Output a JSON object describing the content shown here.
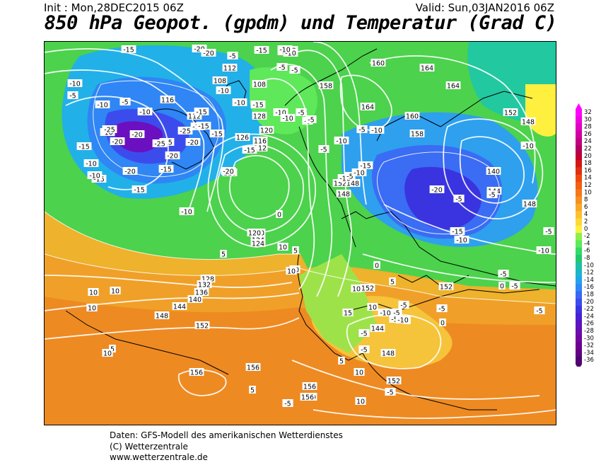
{
  "header": {
    "init": "Init : Mon,28DEC2015 06Z",
    "valid": "Valid: Sun,03JAN2016 06Z",
    "title": "850 hPa Geopot. (gpdm) und Temperatur (Grad C)"
  },
  "legend": {
    "labels": [
      "32",
      "30",
      "28",
      "26",
      "24",
      "22",
      "20",
      "18",
      "16",
      "14",
      "12",
      "10",
      "8",
      "6",
      "4",
      "2",
      "0",
      "-2",
      "-4",
      "-6",
      "-8",
      "-10",
      "-12",
      "-14",
      "-16",
      "-18",
      "-20",
      "-22",
      "-24",
      "-26",
      "-28",
      "-30",
      "-32",
      "-34",
      "-36"
    ],
    "colors": [
      "#ff00ff",
      "#f000e0",
      "#e000c0",
      "#d000a0",
      "#c00080",
      "#b00060",
      "#c00030",
      "#d01818",
      "#e03010",
      "#ee4a10",
      "#f26010",
      "#f57818",
      "#f89020",
      "#faa828",
      "#fcc030",
      "#fdd838",
      "#fff040",
      "#8cf04c",
      "#5ee85a",
      "#30dc66",
      "#22c870",
      "#1ec0a0",
      "#1cb4cc",
      "#22a4ec",
      "#3088f8",
      "#3a68f4",
      "#3c4cec",
      "#3a34e0",
      "#4a20d0",
      "#5c14c0",
      "#6a0cb0",
      "#7006a0",
      "#6c0090",
      "#600080",
      "#500070"
    ]
  },
  "map": {
    "temperature_labels": [
      "-15",
      "-20",
      "-20",
      "-15",
      "-15",
      "-10",
      "-5",
      "-10",
      "-10",
      "-5",
      "-15",
      "-10",
      "-10",
      "-5",
      "-10",
      "-5",
      "-5",
      "-10",
      "-10",
      "-10",
      "-20",
      "-15",
      "-15",
      "-10",
      "-10",
      "-15",
      "-10",
      "-20",
      "-15",
      "-20",
      "-15",
      "-25",
      "-20",
      "-25",
      "-25",
      "-20",
      "-15",
      "-15",
      "-15",
      "-15",
      "-20",
      "-15",
      "-10",
      "-10",
      "-5",
      "-5",
      "-5",
      "-5",
      "-10",
      "-15",
      "-10",
      "-5",
      "-5",
      "-10",
      "-10",
      "-20",
      "-15",
      "-10",
      "-5",
      "-5",
      "-10",
      "-5",
      "-10",
      "-10",
      "-5",
      "-5",
      "-5",
      "-5",
      "0",
      "0",
      "5",
      "0",
      "5",
      "10",
      "10",
      "10",
      "10",
      "10",
      "10",
      "5",
      "10",
      "5",
      "-5",
      "5",
      "10",
      "15",
      "10",
      "5",
      "0",
      "-5",
      "10",
      "-5",
      "10",
      "-10",
      "-5",
      "-5",
      "-5",
      "-5",
      "-5",
      "-5",
      "0",
      "-10",
      "0"
    ],
    "height_labels": [
      "112",
      "108",
      "116",
      "112",
      "116",
      "120",
      "124",
      "128",
      "120",
      "116",
      "112",
      "108",
      "120",
      "124",
      "126",
      "160",
      "164",
      "164",
      "158",
      "164",
      "160",
      "158",
      "152",
      "148",
      "140",
      "144",
      "148",
      "152",
      "148",
      "148",
      "152",
      "144",
      "148",
      "152",
      "152",
      "156",
      "156",
      "160",
      "156",
      "156",
      "128",
      "132",
      "136",
      "140",
      "144",
      "148",
      "152"
    ]
  },
  "credits": {
    "line1": "Daten: GFS-Modell des amerikanischen Wetterdienstes",
    "line2": "(C) Wetterzentrale",
    "line3": "www.wetterzentrale.de"
  }
}
